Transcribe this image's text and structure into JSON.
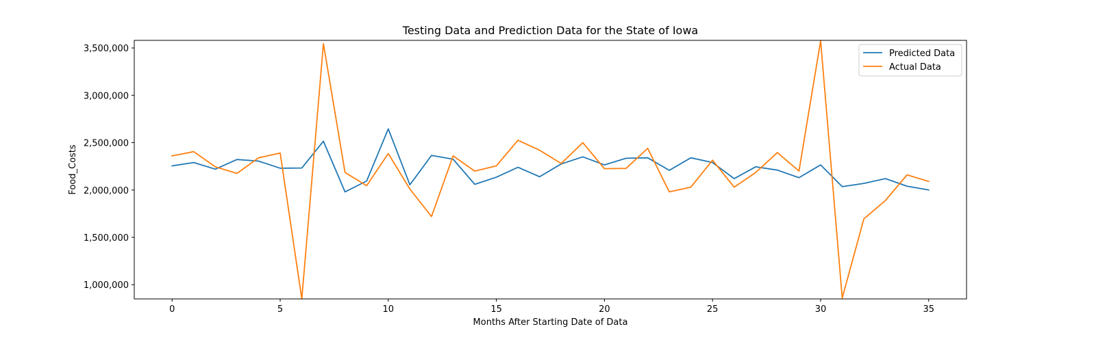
{
  "chart_data": {
    "type": "line",
    "title": "Testing Data and Prediction Data for the State of Iowa",
    "xlabel": "Months After Starting Date of Data",
    "ylabel": "Food_Costs",
    "xlim": [
      -1.75,
      36.75
    ],
    "ylim": [
      850000,
      3580000
    ],
    "xticks": [
      0,
      5,
      10,
      15,
      20,
      25,
      30,
      35
    ],
    "yticks": [
      1000000,
      1500000,
      2000000,
      2500000,
      3000000,
      3500000
    ],
    "ytick_labels": [
      "1,000,000",
      "1,500,000",
      "2,000,000",
      "2,500,000",
      "3,000,000",
      "3,500,000"
    ],
    "grid": false,
    "legend_position": "top-right",
    "x": [
      0,
      1,
      2,
      3,
      4,
      5,
      6,
      7,
      8,
      9,
      10,
      11,
      12,
      13,
      14,
      15,
      16,
      17,
      18,
      19,
      20,
      21,
      22,
      23,
      24,
      25,
      26,
      27,
      28,
      29,
      30,
      31,
      32,
      33,
      34,
      35
    ],
    "series": [
      {
        "name": "Predicted Data",
        "color": "#1f77b4",
        "values": [
          2255000,
          2290000,
          2220000,
          2322000,
          2305000,
          2230000,
          2232000,
          2515000,
          1980000,
          2095000,
          2645000,
          2055000,
          2365000,
          2325000,
          2060000,
          2135000,
          2240000,
          2140000,
          2275000,
          2350000,
          2265000,
          2335000,
          2340000,
          2208000,
          2340000,
          2290000,
          2120000,
          2245000,
          2210000,
          2130000,
          2265000,
          2035000,
          2070000,
          2120000,
          2040000,
          2000000
        ]
      },
      {
        "name": "Actual Data",
        "color": "#ff7f0e",
        "values": [
          2360000,
          2405000,
          2245000,
          2175000,
          2340000,
          2390000,
          850000,
          3545000,
          2185000,
          2045000,
          2385000,
          2010000,
          1720000,
          2360000,
          2200000,
          2255000,
          2525000,
          2420000,
          2280000,
          2500000,
          2225000,
          2228000,
          2440000,
          1980000,
          2030000,
          2315000,
          2030000,
          2185000,
          2395000,
          2200000,
          3575000,
          860000,
          1695000,
          1890000,
          2160000,
          2090000
        ]
      }
    ]
  }
}
